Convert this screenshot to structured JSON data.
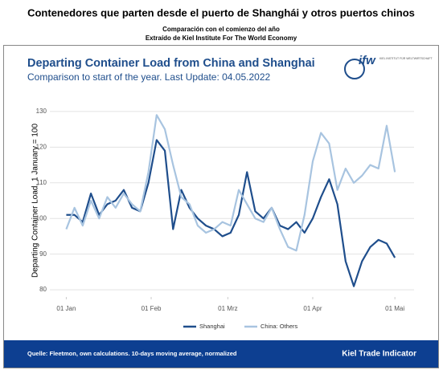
{
  "header": {
    "title": "Contenedores que parten desde el puerto de Shanghái y otros puertos chinos",
    "subtitle": "Comparación con el comienzo del año",
    "source_line": "Extraído de Kiel Institute For The World Economy"
  },
  "logo": {
    "mark": "ifw",
    "text": "KIEL INSTITUT FÜR WELTWIRTSCHAFT"
  },
  "chart_data": {
    "type": "line",
    "title": "Departing Container Load from China and Shanghai",
    "subtitle": "Comparison to start of the year. Last Update: 04.05.2022",
    "y_label": "Departing Container Load, 1 January = 100",
    "x": [
      0,
      3,
      6,
      9,
      12,
      15,
      18,
      21,
      24,
      27,
      30,
      33,
      36,
      39,
      42,
      45,
      48,
      51,
      54,
      57,
      60,
      63,
      66,
      69,
      72,
      75,
      78,
      81,
      84,
      87,
      90,
      93,
      96,
      99,
      102,
      105,
      108,
      111,
      114,
      117,
      120
    ],
    "series": [
      {
        "name": "Shanghai",
        "color": "#1f4e8c",
        "values": [
          101,
          101,
          99,
          107,
          101,
          104,
          105,
          108,
          103,
          102,
          110,
          122,
          119,
          97,
          108,
          103,
          100,
          98,
          97,
          95,
          96,
          101,
          113,
          102,
          100,
          103,
          98,
          97,
          99,
          96,
          100,
          106,
          111,
          104,
          88,
          81,
          88,
          92,
          94,
          93,
          89
        ]
      },
      {
        "name": "China: Others",
        "color": "#a8c4e0",
        "values": [
          97,
          103,
          98,
          105,
          100,
          106,
          103,
          107,
          104,
          102,
          113,
          129,
          125,
          115,
          106,
          104,
          98,
          96,
          97,
          99,
          98,
          108,
          104,
          100,
          99,
          103,
          97,
          92,
          91,
          101,
          116,
          124,
          121,
          108,
          114,
          110,
          112,
          115,
          114,
          126,
          113
        ]
      }
    ],
    "xlim": [
      -6,
      127
    ],
    "xticks": [
      {
        "value": 0,
        "label": "01 Jan"
      },
      {
        "value": 31,
        "label": "01 Feb"
      },
      {
        "value": 59,
        "label": "01 Mrz"
      },
      {
        "value": 90,
        "label": "01 Apr"
      },
      {
        "value": 120,
        "label": "01 Mai"
      }
    ],
    "ylim": [
      78,
      132
    ],
    "yticks": [
      80,
      90,
      100,
      110,
      120,
      130
    ],
    "grid": true,
    "legend": "bottom"
  },
  "footer": {
    "source": "Quelle: Fleetmon, own calculations. 10-days moving average, normalized",
    "brand": "Kiel Trade Indicator"
  }
}
